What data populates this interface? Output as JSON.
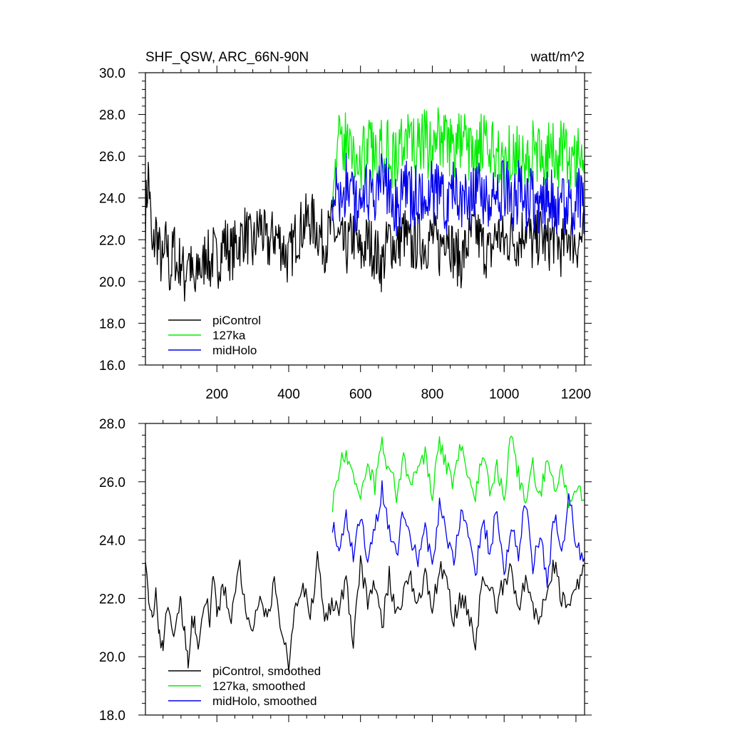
{
  "chart_data": [
    {
      "type": "line",
      "title": "SHF_QSW, ARC_66N-90N",
      "units": "watt/m^2",
      "xlim": [
        1,
        1224
      ],
      "ylim": [
        16.0,
        30.0
      ],
      "x_ticks": [
        200,
        400,
        600,
        800,
        1000,
        1200
      ],
      "y_ticks": [
        16.0,
        18.0,
        20.0,
        22.0,
        24.0,
        26.0,
        28.0,
        30.0
      ],
      "y_tick_labels": [
        "16.0",
        "18.0",
        "20.0",
        "22.0",
        "24.0",
        "26.0",
        "28.0",
        "30.0"
      ],
      "legend": [
        {
          "name": "piControl",
          "color": "#000000"
        },
        {
          "name": "127ka",
          "color": "#00ee00"
        },
        {
          "name": "midHolo",
          "color": "#0000ee"
        }
      ],
      "series": [
        {
          "name": "piControl",
          "color": "#000000",
          "x": [
            1,
            10,
            20,
            30,
            40,
            50,
            60,
            70,
            80,
            90,
            100,
            110,
            120,
            130,
            140,
            150,
            160,
            170,
            180,
            190,
            200,
            220,
            240,
            260,
            280,
            300,
            320,
            340,
            360,
            380,
            400,
            420,
            440,
            460,
            480,
            500,
            520,
            540,
            560,
            580,
            600,
            620,
            640,
            660,
            680,
            700,
            720,
            740,
            760,
            780,
            800,
            820,
            840,
            860,
            880,
            900,
            920,
            940,
            960,
            980,
            1000,
            1020,
            1040,
            1060,
            1080,
            1100,
            1120,
            1140,
            1160,
            1180,
            1200,
            1224
          ],
          "values": [
            23.2,
            25.3,
            21.0,
            22.5,
            21.4,
            20.6,
            22.0,
            20.2,
            21.8,
            20.5,
            21.2,
            20.0,
            21.5,
            20.3,
            19.5,
            21.0,
            20.4,
            21.8,
            20.6,
            21.4,
            20.8,
            22.0,
            21.3,
            21.9,
            22.4,
            21.5,
            22.8,
            21.6,
            22.3,
            21.8,
            21.0,
            22.2,
            22.7,
            23.0,
            22.5,
            21.8,
            22.6,
            21.9,
            21.5,
            22.3,
            21.2,
            22.0,
            21.4,
            20.8,
            22.1,
            21.6,
            22.4,
            21.5,
            22.0,
            21.8,
            22.2,
            21.5,
            22.7,
            21.3,
            21.0,
            21.9,
            22.5,
            21.7,
            21.3,
            22.4,
            21.8,
            22.2,
            21.9,
            22.8,
            21.6,
            22.3,
            21.7,
            22.2,
            21.5,
            22.4,
            21.8,
            22.2
          ]
        },
        {
          "name": "127ka",
          "color": "#00ee00",
          "x": [
            522,
            540,
            560,
            580,
            600,
            620,
            640,
            660,
            680,
            700,
            720,
            740,
            760,
            780,
            800,
            820,
            840,
            860,
            880,
            900,
            920,
            940,
            960,
            980,
            1000,
            1020,
            1040,
            1060,
            1080,
            1100,
            1120,
            1140,
            1160,
            1180,
            1200,
            1224
          ],
          "values": [
            25.3,
            26.4,
            26.8,
            26.1,
            25.6,
            26.5,
            25.8,
            26.9,
            26.3,
            25.7,
            27.0,
            26.6,
            26.2,
            26.8,
            25.9,
            27.1,
            26.7,
            26.2,
            26.9,
            26.4,
            25.8,
            26.6,
            25.9,
            26.3,
            25.7,
            26.5,
            26.0,
            25.6,
            26.3,
            25.8,
            26.4,
            25.9,
            26.2,
            25.7,
            26.1,
            25.6
          ]
        },
        {
          "name": "midHolo",
          "color": "#0000ee",
          "x": [
            522,
            540,
            560,
            580,
            600,
            620,
            640,
            660,
            680,
            700,
            720,
            740,
            760,
            780,
            800,
            820,
            840,
            860,
            880,
            900,
            920,
            940,
            960,
            980,
            1000,
            1020,
            1040,
            1060,
            1080,
            1100,
            1120,
            1140,
            1160,
            1180,
            1200,
            1224
          ],
          "values": [
            24.5,
            23.9,
            24.6,
            23.8,
            24.2,
            24.0,
            23.6,
            24.8,
            24.3,
            23.7,
            24.5,
            23.9,
            24.1,
            23.5,
            24.4,
            24.0,
            23.8,
            24.6,
            24.2,
            23.6,
            24.3,
            23.9,
            24.1,
            23.7,
            24.4,
            23.8,
            24.2,
            23.6,
            24.0,
            23.5,
            24.3,
            23.8,
            24.1,
            23.6,
            24.0,
            23.5
          ]
        }
      ]
    },
    {
      "type": "line",
      "xlim": [
        1,
        1224
      ],
      "ylim": [
        18.0,
        28.0
      ],
      "x_ticks": [
        200,
        400,
        600,
        800,
        1000,
        1200
      ],
      "y_ticks": [
        18.0,
        20.0,
        22.0,
        24.0,
        26.0,
        28.0
      ],
      "y_tick_labels": [
        "18.0",
        "20.0",
        "22.0",
        "24.0",
        "26.0",
        "28.0"
      ],
      "legend": [
        {
          "name": "piControl, smoothed",
          "color": "#000000"
        },
        {
          "name": "127ka, smoothed",
          "color": "#00ee00"
        },
        {
          "name": "midHolo, smoothed",
          "color": "#0000ee"
        }
      ],
      "series": [
        {
          "name": "piControl, smoothed",
          "color": "#000000",
          "x": [
            1,
            10,
            20,
            30,
            40,
            50,
            60,
            70,
            80,
            90,
            100,
            110,
            120,
            130,
            140,
            150,
            160,
            170,
            180,
            190,
            200,
            220,
            240,
            260,
            280,
            300,
            320,
            340,
            360,
            380,
            400,
            420,
            440,
            460,
            480,
            500,
            520,
            540,
            560,
            580,
            600,
            620,
            640,
            660,
            680,
            700,
            720,
            740,
            760,
            780,
            800,
            820,
            840,
            860,
            880,
            900,
            920,
            940,
            960,
            980,
            1000,
            1020,
            1040,
            1060,
            1080,
            1100,
            1120,
            1140,
            1160,
            1180,
            1200,
            1224
          ],
          "values": [
            23.6,
            22.0,
            21.5,
            22.2,
            20.8,
            20.4,
            21.7,
            21.2,
            20.6,
            21.5,
            21.8,
            20.9,
            19.6,
            21.4,
            21.1,
            20.4,
            21.5,
            22.1,
            21.0,
            22.9,
            21.6,
            22.4,
            21.0,
            23.4,
            21.5,
            20.9,
            22.1,
            21.4,
            22.6,
            20.8,
            19.8,
            21.8,
            22.5,
            21.3,
            23.4,
            21.2,
            21.9,
            21.6,
            22.7,
            20.5,
            23.2,
            21.8,
            22.6,
            21.0,
            22.8,
            21.4,
            22.2,
            22.7,
            21.6,
            22.9,
            21.5,
            23.1,
            22.5,
            21.3,
            22.0,
            21.6,
            20.3,
            23.0,
            22.2,
            21.8,
            22.6,
            23.1,
            21.4,
            22.8,
            21.6,
            21.3,
            22.5,
            23.2,
            22.0,
            21.7,
            22.4,
            23.1
          ]
        },
        {
          "name": "127ka, smoothed",
          "color": "#00ee00",
          "x": [
            522,
            540,
            560,
            580,
            600,
            620,
            640,
            660,
            680,
            700,
            720,
            740,
            760,
            780,
            800,
            820,
            840,
            860,
            880,
            900,
            920,
            940,
            960,
            980,
            1000,
            1020,
            1040,
            1060,
            1080,
            1100,
            1120,
            1140,
            1160,
            1180,
            1200,
            1224
          ],
          "values": [
            25.3,
            26.5,
            27.0,
            26.2,
            25.4,
            26.6,
            25.9,
            27.2,
            26.5,
            25.6,
            26.9,
            25.8,
            26.4,
            27.0,
            25.5,
            27.3,
            26.6,
            25.9,
            27.4,
            26.3,
            25.6,
            26.9,
            25.7,
            26.5,
            25.4,
            27.6,
            26.2,
            25.4,
            26.5,
            25.5,
            26.8,
            25.6,
            26.7,
            25.2,
            25.8,
            25.4
          ]
        },
        {
          "name": "midHolo, smoothed",
          "color": "#0000ee",
          "x": [
            522,
            540,
            560,
            580,
            600,
            620,
            640,
            660,
            680,
            700,
            720,
            740,
            760,
            780,
            800,
            820,
            840,
            860,
            880,
            900,
            920,
            940,
            960,
            980,
            1000,
            1020,
            1040,
            1060,
            1080,
            1100,
            1120,
            1140,
            1160,
            1180,
            1200,
            1224
          ],
          "values": [
            24.6,
            23.4,
            24.8,
            23.6,
            24.9,
            23.2,
            24.5,
            25.7,
            24.3,
            23.5,
            25.1,
            24.0,
            23.3,
            24.6,
            22.9,
            25.3,
            24.1,
            23.2,
            25.0,
            24.4,
            22.8,
            24.7,
            23.6,
            25.2,
            22.9,
            24.4,
            23.5,
            25.4,
            23.0,
            24.2,
            22.6,
            24.9,
            23.4,
            25.6,
            23.8,
            23.4
          ]
        }
      ]
    }
  ]
}
